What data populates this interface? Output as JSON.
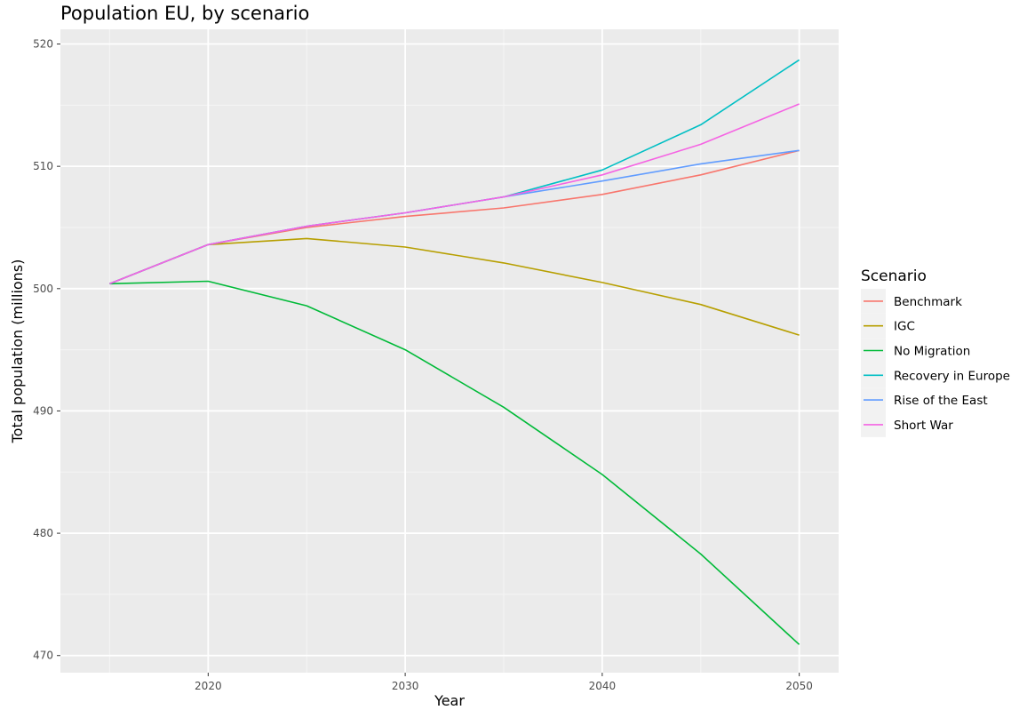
{
  "chart_data": {
    "type": "line",
    "title": "Population EU, by scenario",
    "xlabel": "Year",
    "ylabel": "Total population (millions)",
    "x": [
      2015,
      2020,
      2025,
      2030,
      2035,
      2040,
      2045,
      2050
    ],
    "xlim": [
      2012.5,
      2052
    ],
    "ylim": [
      468.6,
      521.2
    ],
    "xticks": [
      2020,
      2030,
      2040,
      2050
    ],
    "yticks": [
      470,
      480,
      490,
      500,
      510,
      520
    ],
    "grid": true,
    "legend": {
      "title": "Scenario",
      "position": "right"
    },
    "series": [
      {
        "name": "Benchmark",
        "color": "#F8766D",
        "values": [
          500.4,
          503.6,
          505.0,
          505.9,
          506.6,
          507.7,
          509.3,
          511.3
        ]
      },
      {
        "name": "IGC",
        "color": "#B79F00",
        "values": [
          500.4,
          503.6,
          504.1,
          503.4,
          502.1,
          500.5,
          498.7,
          496.2
        ]
      },
      {
        "name": "No Migration",
        "color": "#00BA38",
        "values": [
          500.4,
          500.6,
          498.6,
          495.0,
          490.3,
          484.8,
          478.3,
          470.9
        ]
      },
      {
        "name": "Recovery in Europe",
        "color": "#00BFC4",
        "values": [
          500.4,
          503.6,
          505.1,
          506.2,
          507.5,
          509.7,
          513.4,
          518.7
        ]
      },
      {
        "name": "Rise of the East",
        "color": "#619CFF",
        "values": [
          500.4,
          503.6,
          505.1,
          506.2,
          507.5,
          508.8,
          510.2,
          511.3
        ]
      },
      {
        "name": "Short War",
        "color": "#F564E3",
        "values": [
          500.4,
          503.6,
          505.1,
          506.2,
          507.5,
          509.3,
          511.8,
          515.1
        ]
      }
    ]
  }
}
